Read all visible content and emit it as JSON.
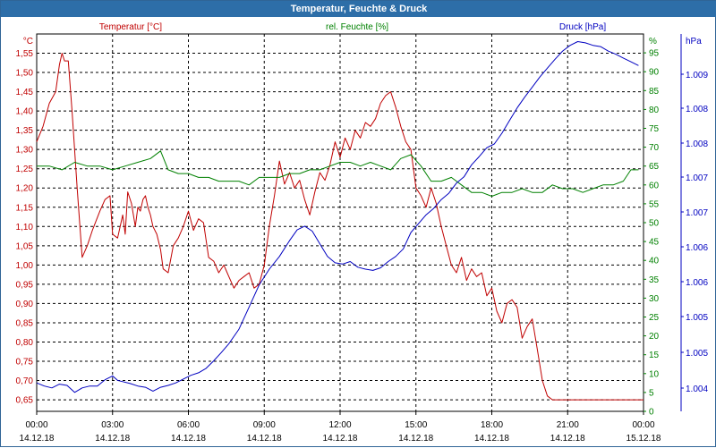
{
  "window": {
    "title": "Temperatur, Feuchte & Druck"
  },
  "colors": {
    "temperature": "#c00000",
    "humidity": "#008000",
    "pressure": "#0000c0",
    "grid": "#000000",
    "titlebar": "#2d6ea8"
  },
  "chart_data": {
    "type": "line",
    "title": "Temperatur, Feuchte & Druck",
    "grid": true,
    "x_axis": {
      "ticks": [
        {
          "time": "00:00",
          "date": "14.12.18"
        },
        {
          "time": "03:00",
          "date": "14.12.18"
        },
        {
          "time": "06:00",
          "date": "14.12.18"
        },
        {
          "time": "09:00",
          "date": "14.12.18"
        },
        {
          "time": "12:00",
          "date": "14.12.18"
        },
        {
          "time": "15:00",
          "date": "14.12.18"
        },
        {
          "time": "18:00",
          "date": "14.12.18"
        },
        {
          "time": "21:00",
          "date": "14.12.18"
        },
        {
          "time": "00:00",
          "date": "15.12.18"
        }
      ],
      "range_hours": [
        0,
        24
      ]
    },
    "axes": {
      "temperature": {
        "label": "Temperatur [°C]",
        "unit": "°C",
        "ylim": [
          0.62,
          1.6
        ],
        "ticks": [
          "1,55",
          "1,50",
          "1,45",
          "1,40",
          "1,35",
          "1,30",
          "1,25",
          "1,20",
          "1,15",
          "1,10",
          "1,05",
          "1,00",
          "0,95",
          "0,90",
          "0,85",
          "0,80",
          "0,75",
          "0,70",
          "0,65"
        ]
      },
      "humidity": {
        "label": "rel. Feuchte [%]",
        "unit": "%",
        "ylim": [
          0,
          100
        ],
        "ticks": [
          "0",
          "5",
          "10",
          "15",
          "20",
          "25",
          "30",
          "35",
          "40",
          "45",
          "50",
          "55",
          "60",
          "65",
          "70",
          "75",
          "80",
          "85",
          "90",
          "95",
          "%"
        ]
      },
      "pressure": {
        "label": "Druck [hPa]",
        "unit": "hPa",
        "ylim": [
          1003.65,
          1009.62
        ],
        "ticks": [
          "1.009",
          "1.008",
          "1.008",
          "1.007",
          "1.007",
          "1.006",
          "1.006",
          "1.005",
          "1.005",
          "1.004",
          "hPa"
        ]
      }
    },
    "series": [
      {
        "name": "Temperatur [°C]",
        "axis": "temperature",
        "x": [
          0,
          0.25,
          0.5,
          0.75,
          0.9,
          1.0,
          1.1,
          1.25,
          1.4,
          1.6,
          1.8,
          2.0,
          2.2,
          2.5,
          2.7,
          2.9,
          3.0,
          3.2,
          3.4,
          3.5,
          3.6,
          3.75,
          3.9,
          4.0,
          4.1,
          4.2,
          4.3,
          4.4,
          4.5,
          4.6,
          4.75,
          4.9,
          5.0,
          5.2,
          5.4,
          5.6,
          5.8,
          6.0,
          6.2,
          6.4,
          6.6,
          6.8,
          7.0,
          7.2,
          7.4,
          7.6,
          7.8,
          8.0,
          8.2,
          8.4,
          8.6,
          8.8,
          9.0,
          9.2,
          9.4,
          9.6,
          9.8,
          10.0,
          10.2,
          10.4,
          10.6,
          10.8,
          11.0,
          11.2,
          11.4,
          11.6,
          11.8,
          12.0,
          12.2,
          12.4,
          12.6,
          12.8,
          13.0,
          13.2,
          13.4,
          13.6,
          13.8,
          14.0,
          14.2,
          14.4,
          14.6,
          14.8,
          15.0,
          15.2,
          15.4,
          15.6,
          15.8,
          16.0,
          16.2,
          16.4,
          16.6,
          16.8,
          17.0,
          17.2,
          17.4,
          17.6,
          17.8,
          18.0,
          18.2,
          18.4,
          18.6,
          18.8,
          19.0,
          19.2,
          19.4,
          19.6,
          19.8,
          20.0,
          20.2,
          20.4,
          20.6,
          20.8,
          21.0,
          21.2,
          21.4,
          21.6,
          21.8,
          22.0,
          22.2,
          22.4,
          22.6,
          22.8,
          23.0,
          23.2,
          23.4,
          23.6,
          23.8,
          24.0
        ],
        "values": [
          1.32,
          1.36,
          1.42,
          1.45,
          1.52,
          1.55,
          1.53,
          1.53,
          1.4,
          1.2,
          1.02,
          1.05,
          1.09,
          1.14,
          1.17,
          1.18,
          1.08,
          1.07,
          1.13,
          1.08,
          1.19,
          1.16,
          1.1,
          1.15,
          1.14,
          1.17,
          1.18,
          1.15,
          1.13,
          1.1,
          1.08,
          1.04,
          0.99,
          0.98,
          1.05,
          1.07,
          1.1,
          1.14,
          1.09,
          1.12,
          1.11,
          1.02,
          1.01,
          0.98,
          1.0,
          0.97,
          0.94,
          0.96,
          0.97,
          0.98,
          0.94,
          0.95,
          1.0,
          1.1,
          1.18,
          1.27,
          1.21,
          1.24,
          1.2,
          1.22,
          1.17,
          1.13,
          1.19,
          1.24,
          1.22,
          1.26,
          1.32,
          1.28,
          1.33,
          1.3,
          1.35,
          1.33,
          1.37,
          1.36,
          1.38,
          1.42,
          1.44,
          1.45,
          1.41,
          1.36,
          1.32,
          1.3,
          1.2,
          1.18,
          1.15,
          1.2,
          1.16,
          1.1,
          1.05,
          1.0,
          0.98,
          1.02,
          0.96,
          0.99,
          0.97,
          0.98,
          0.92,
          0.94,
          0.88,
          0.85,
          0.9,
          0.91,
          0.89,
          0.81,
          0.84,
          0.86,
          0.78,
          0.7,
          0.66,
          0.65,
          0.65,
          0.65,
          0.65,
          0.65,
          0.65,
          0.65,
          0.65,
          0.65,
          0.65,
          0.65,
          0.65,
          0.65,
          0.65,
          0.65,
          0.65,
          0.65,
          0.65,
          0.65
        ]
      },
      {
        "name": "rel. Feuchte [%]",
        "axis": "humidity",
        "x": [
          0,
          0.5,
          1.0,
          1.5,
          2.0,
          2.5,
          3.0,
          3.5,
          4.0,
          4.5,
          4.9,
          5.2,
          5.6,
          6.0,
          6.4,
          6.8,
          7.2,
          7.6,
          8.0,
          8.4,
          8.8,
          9.2,
          9.6,
          10.0,
          10.4,
          10.8,
          11.2,
          11.6,
          12.0,
          12.4,
          12.8,
          13.2,
          13.6,
          14.0,
          14.4,
          14.8,
          15.2,
          15.6,
          16.0,
          16.4,
          16.8,
          17.2,
          17.6,
          18.0,
          18.4,
          18.8,
          19.2,
          19.6,
          20.0,
          20.4,
          20.8,
          21.2,
          21.6,
          22.0,
          22.4,
          22.8,
          23.2,
          23.5,
          23.8
        ],
        "values": [
          65,
          65,
          64,
          66,
          65,
          65,
          64,
          65,
          66,
          67,
          69,
          64,
          63,
          63,
          62,
          62,
          61,
          61,
          61,
          60,
          62,
          62,
          62,
          63,
          63,
          64,
          64,
          65,
          66,
          66,
          65,
          66,
          65,
          64,
          67,
          68,
          65,
          61,
          61,
          62,
          60,
          58,
          58,
          57,
          58,
          58,
          59,
          58,
          58,
          60,
          59,
          59,
          58,
          59,
          60,
          60,
          61,
          64,
          64
        ]
      },
      {
        "name": "Druck [hPa]",
        "axis": "pressure",
        "x": [
          0,
          0.3,
          0.6,
          0.9,
          1.2,
          1.5,
          1.8,
          2.1,
          2.4,
          2.7,
          3.0,
          3.2,
          3.4,
          3.7,
          4.0,
          4.3,
          4.6,
          4.9,
          5.2,
          5.5,
          5.8,
          6.1,
          6.4,
          6.7,
          7.0,
          7.3,
          7.6,
          8.0,
          8.4,
          8.8,
          9.2,
          9.6,
          10.0,
          10.3,
          10.6,
          10.9,
          11.2,
          11.5,
          11.8,
          12.1,
          12.4,
          12.7,
          13.0,
          13.3,
          13.6,
          13.9,
          14.2,
          14.5,
          14.8,
          15.1,
          15.4,
          15.7,
          16.0,
          16.3,
          16.6,
          16.9,
          17.2,
          17.5,
          17.8,
          18.1,
          18.4,
          18.7,
          19.0,
          19.3,
          19.6,
          19.9,
          20.2,
          20.5,
          20.8,
          21.1,
          21.4,
          21.7,
          22.0,
          22.3,
          22.6,
          22.9,
          23.2,
          23.5,
          23.8
        ],
        "values": [
          1004.1,
          1004.05,
          1004.02,
          1004.08,
          1004.06,
          1003.95,
          1004.02,
          1004.05,
          1004.05,
          1004.15,
          1004.21,
          1004.14,
          1004.12,
          1004.09,
          1004.05,
          1004.03,
          1003.97,
          1004.03,
          1004.06,
          1004.1,
          1004.16,
          1004.22,
          1004.26,
          1004.33,
          1004.45,
          1004.58,
          1004.72,
          1004.95,
          1005.3,
          1005.65,
          1005.9,
          1006.1,
          1006.35,
          1006.52,
          1006.58,
          1006.5,
          1006.3,
          1006.1,
          1006.0,
          1005.98,
          1006.02,
          1005.93,
          1005.9,
          1005.88,
          1005.92,
          1006.02,
          1006.1,
          1006.22,
          1006.48,
          1006.62,
          1006.76,
          1006.86,
          1007.0,
          1007.1,
          1007.26,
          1007.36,
          1007.55,
          1007.68,
          1007.82,
          1007.88,
          1008.05,
          1008.25,
          1008.45,
          1008.62,
          1008.78,
          1008.94,
          1009.08,
          1009.22,
          1009.35,
          1009.44,
          1009.5,
          1009.48,
          1009.44,
          1009.42,
          1009.35,
          1009.3,
          1009.24,
          1009.18,
          1009.12
        ]
      }
    ]
  }
}
